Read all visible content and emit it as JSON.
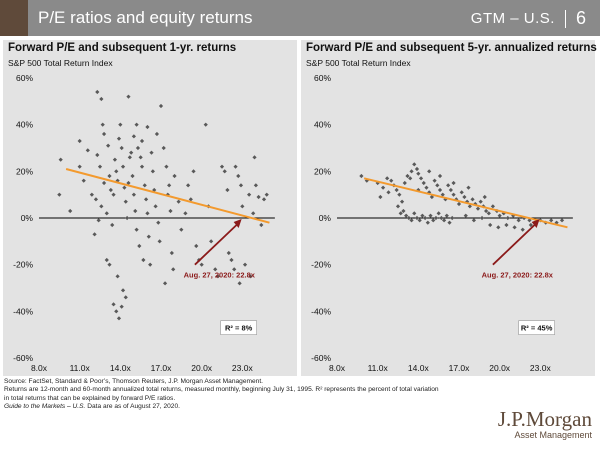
{
  "header": {
    "title": "P/E ratios and equity returns",
    "section": "GTM – U.S.",
    "page": "6",
    "colors": {
      "bar": "#8a8a8a",
      "accent": "#5f4a3a"
    }
  },
  "colors": {
    "points": "#595959",
    "trend": "#f39a2e",
    "arrow": "#8b1a1a",
    "annotation": "#8b1a1a",
    "panel_bg": "#e3e3e3",
    "brand": "#5f4a3a"
  },
  "chart_data": [
    {
      "type": "scatter",
      "title": "Forward P/E and subsequent 1-yr. returns",
      "subtitle": "S&P 500 Total Return Index",
      "xlabel": "",
      "ylabel": "",
      "xlim": [
        8,
        26
      ],
      "ylim": [
        -60,
        60
      ],
      "x_ticks": [
        8,
        11,
        14,
        17,
        20,
        23
      ],
      "x_tick_labels": [
        "8.0x",
        "11.0x",
        "14.0x",
        "17.0x",
        "20.0x",
        "23.0x"
      ],
      "y_ticks": [
        -60,
        -40,
        -20,
        0,
        20,
        40,
        60
      ],
      "y_tick_labels": [
        "-60%",
        "-40%",
        "-20%",
        "0%",
        "20%",
        "40%",
        "60%"
      ],
      "grid": false,
      "trendline": {
        "x": [
          10,
          25
        ],
        "y": [
          21,
          -2
        ]
      },
      "annotation": {
        "text": "Aug. 27, 2020: 22.8x",
        "point": [
          22.8,
          0
        ]
      },
      "r2_label": "R² =   8%",
      "points": [
        [
          9.6,
          25
        ],
        [
          9.5,
          10
        ],
        [
          10.3,
          3
        ],
        [
          11.0,
          22
        ],
        [
          11.3,
          16
        ],
        [
          11.0,
          33
        ],
        [
          11.6,
          29
        ],
        [
          11.9,
          10
        ],
        [
          12.3,
          27
        ],
        [
          12.5,
          22
        ],
        [
          12.8,
          15
        ],
        [
          12.2,
          8
        ],
        [
          12.1,
          -7
        ],
        [
          12.4,
          -1
        ],
        [
          12.6,
          5
        ],
        [
          13.0,
          2
        ],
        [
          12.7,
          40
        ],
        [
          12.8,
          36
        ],
        [
          12.3,
          54
        ],
        [
          12.6,
          51
        ],
        [
          13.1,
          31
        ],
        [
          13.2,
          18
        ],
        [
          13.3,
          12
        ],
        [
          13.4,
          -3
        ],
        [
          13.0,
          -18
        ],
        [
          13.2,
          -20
        ],
        [
          13.5,
          10
        ],
        [
          13.6,
          25
        ],
        [
          13.7,
          20
        ],
        [
          13.8,
          16
        ],
        [
          13.9,
          34
        ],
        [
          14.0,
          40
        ],
        [
          14.1,
          30
        ],
        [
          14.2,
          22
        ],
        [
          14.3,
          13
        ],
        [
          14.4,
          7
        ],
        [
          14.5,
          0
        ],
        [
          13.8,
          -25
        ],
        [
          13.5,
          -37
        ],
        [
          13.7,
          -40
        ],
        [
          13.9,
          -43
        ],
        [
          14.1,
          -38
        ],
        [
          14.4,
          -34
        ],
        [
          14.2,
          -31
        ],
        [
          14.6,
          52
        ],
        [
          14.8,
          28
        ],
        [
          14.9,
          18
        ],
        [
          15.0,
          10
        ],
        [
          15.1,
          3
        ],
        [
          15.2,
          -5
        ],
        [
          14.7,
          26
        ],
        [
          14.6,
          15
        ],
        [
          15.0,
          35
        ],
        [
          15.2,
          40
        ],
        [
          15.5,
          26
        ],
        [
          15.6,
          22
        ],
        [
          15.8,
          14
        ],
        [
          15.9,
          8
        ],
        [
          16.0,
          2
        ],
        [
          16.1,
          -8
        ],
        [
          15.4,
          -12
        ],
        [
          15.7,
          -18
        ],
        [
          15.3,
          30
        ],
        [
          15.6,
          33
        ],
        [
          16.3,
          28
        ],
        [
          16.4,
          20
        ],
        [
          16.5,
          12
        ],
        [
          16.6,
          5
        ],
        [
          16.8,
          -2
        ],
        [
          16.9,
          -10
        ],
        [
          16.2,
          -20
        ],
        [
          16.0,
          39
        ],
        [
          16.7,
          36
        ],
        [
          17.0,
          48
        ],
        [
          17.2,
          30
        ],
        [
          17.4,
          22
        ],
        [
          17.5,
          10
        ],
        [
          17.7,
          3
        ],
        [
          17.8,
          -15
        ],
        [
          17.9,
          -22
        ],
        [
          17.3,
          -28
        ],
        [
          17.6,
          14
        ],
        [
          18.0,
          18
        ],
        [
          18.3,
          7
        ],
        [
          18.5,
          -5
        ],
        [
          18.8,
          2
        ],
        [
          19.0,
          14
        ],
        [
          19.2,
          8
        ],
        [
          19.4,
          20
        ],
        [
          19.6,
          -12
        ],
        [
          19.8,
          -18
        ],
        [
          20.0,
          -20
        ],
        [
          20.3,
          40
        ],
        [
          20.5,
          5
        ],
        [
          20.7,
          -10
        ],
        [
          21.0,
          -22
        ],
        [
          21.2,
          -25
        ],
        [
          21.5,
          22
        ],
        [
          21.7,
          20
        ],
        [
          21.9,
          12
        ],
        [
          22.0,
          -15
        ],
        [
          22.2,
          -18
        ],
        [
          22.4,
          -22
        ],
        [
          22.5,
          22
        ],
        [
          22.7,
          18
        ],
        [
          22.9,
          14
        ],
        [
          23.0,
          5
        ],
        [
          23.2,
          -20
        ],
        [
          23.5,
          10
        ],
        [
          23.8,
          2
        ],
        [
          24.0,
          14
        ],
        [
          24.2,
          9
        ],
        [
          24.4,
          -3
        ],
        [
          24.6,
          8
        ],
        [
          24.8,
          10
        ],
        [
          23.6,
          -25
        ],
        [
          22.8,
          -28
        ],
        [
          23.9,
          26
        ]
      ]
    },
    {
      "type": "scatter",
      "title": "Forward P/E and subsequent 5-yr. annualized returns",
      "subtitle": "S&P 500 Total Return Index",
      "xlabel": "",
      "ylabel": "",
      "xlim": [
        8,
        26
      ],
      "ylim": [
        -60,
        60
      ],
      "x_ticks": [
        8,
        11,
        14,
        17,
        20,
        23
      ],
      "x_tick_labels": [
        "8.0x",
        "11.0x",
        "14.0x",
        "17.0x",
        "20.0x",
        "23.0x"
      ],
      "y_ticks": [
        -60,
        -40,
        -20,
        0,
        20,
        40,
        60
      ],
      "y_tick_labels": [
        "-60%",
        "-40%",
        "-20%",
        "0%",
        "20%",
        "40%",
        "60%"
      ],
      "grid": false,
      "trendline": {
        "x": [
          10,
          25
        ],
        "y": [
          17,
          -4
        ]
      },
      "annotation": {
        "text": "Aug. 27, 2020: 22.8x",
        "point": [
          22.8,
          0
        ]
      },
      "r2_label": "R² =   45%",
      "points": [
        [
          9.8,
          18
        ],
        [
          10.2,
          16
        ],
        [
          11.0,
          15
        ],
        [
          11.4,
          13
        ],
        [
          11.7,
          17
        ],
        [
          12.0,
          16
        ],
        [
          12.2,
          14
        ],
        [
          12.4,
          12
        ],
        [
          12.6,
          10
        ],
        [
          12.8,
          7
        ],
        [
          13.0,
          15
        ],
        [
          13.2,
          18
        ],
        [
          13.4,
          17
        ],
        [
          13.5,
          20
        ],
        [
          13.7,
          23
        ],
        [
          13.9,
          21
        ],
        [
          14.0,
          19
        ],
        [
          14.2,
          17
        ],
        [
          14.4,
          15
        ],
        [
          14.6,
          13
        ],
        [
          14.8,
          11
        ],
        [
          15.0,
          9
        ],
        [
          15.2,
          16
        ],
        [
          15.4,
          14
        ],
        [
          15.6,
          12
        ],
        [
          15.8,
          10
        ],
        [
          16.0,
          8
        ],
        [
          16.2,
          14
        ],
        [
          16.4,
          12
        ],
        [
          16.6,
          10
        ],
        [
          16.8,
          8
        ],
        [
          17.0,
          6
        ],
        [
          17.2,
          11
        ],
        [
          17.4,
          9
        ],
        [
          17.6,
          7
        ],
        [
          17.8,
          5
        ],
        [
          18.0,
          8
        ],
        [
          18.2,
          6
        ],
        [
          18.4,
          4
        ],
        [
          18.6,
          7
        ],
        [
          18.8,
          5
        ],
        [
          19.0,
          3
        ],
        [
          19.2,
          2
        ],
        [
          19.5,
          5
        ],
        [
          19.8,
          3
        ],
        [
          20.0,
          1
        ],
        [
          20.3,
          2
        ],
        [
          20.6,
          0
        ],
        [
          21.0,
          1
        ],
        [
          21.4,
          -1
        ],
        [
          21.8,
          0
        ],
        [
          22.2,
          -1
        ],
        [
          22.6,
          -2
        ],
        [
          23.0,
          -1
        ],
        [
          23.4,
          -2
        ],
        [
          23.8,
          -1
        ],
        [
          24.2,
          -2
        ],
        [
          24.6,
          -1
        ],
        [
          12.9,
          3
        ],
        [
          13.1,
          1
        ],
        [
          13.3,
          0
        ],
        [
          13.5,
          -1
        ],
        [
          13.7,
          2
        ],
        [
          13.9,
          0
        ],
        [
          14.1,
          -1
        ],
        [
          14.3,
          1
        ],
        [
          14.5,
          0
        ],
        [
          14.7,
          -2
        ],
        [
          14.9,
          1
        ],
        [
          15.1,
          -1
        ],
        [
          15.3,
          0
        ],
        [
          15.5,
          2
        ],
        [
          15.7,
          0
        ],
        [
          15.9,
          -1
        ],
        [
          16.1,
          1
        ],
        [
          16.3,
          -2
        ],
        [
          16.5,
          0
        ],
        [
          12.5,
          5
        ],
        [
          12.7,
          2
        ],
        [
          17.5,
          1
        ],
        [
          18.1,
          -1
        ],
        [
          18.7,
          0
        ],
        [
          19.3,
          -3
        ],
        [
          19.9,
          -4
        ],
        [
          20.5,
          -3
        ],
        [
          21.1,
          -4
        ],
        [
          21.7,
          -5
        ],
        [
          22.3,
          -3
        ],
        [
          14.0,
          12
        ],
        [
          14.8,
          20
        ],
        [
          15.6,
          18
        ],
        [
          16.6,
          15
        ],
        [
          17.7,
          13
        ],
        [
          18.9,
          9
        ],
        [
          11.8,
          11
        ],
        [
          11.2,
          9
        ]
      ]
    }
  ],
  "footnotes": {
    "line1": "Source: FactSet, Standard & Poor’s, Thomson Reuters, J.P. Morgan Asset Management.",
    "line2": "Returns are 12-month and 60-month annualized total returns, measured monthly, beginning July 31, 1995. R² represents the percent of total variation",
    "line3": "in total returns that can be explained by forward P/E ratios.",
    "line4_italic": "Guide to the Markets – U.S.",
    "line4_rest": " Data are as of August 27, 2020."
  },
  "brand": {
    "name": "J.P.Morgan",
    "sub": "Asset Management"
  }
}
